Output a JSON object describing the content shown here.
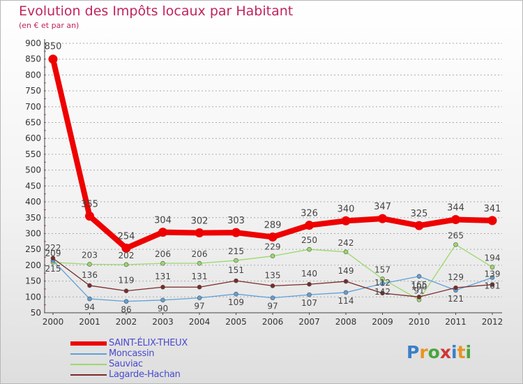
{
  "header": {
    "title": "Evolution des Impôts locaux par Habitant",
    "subtitle": "(en € et par an)"
  },
  "logo": {
    "letters": [
      "P",
      "r",
      "o",
      "x",
      "i",
      "t",
      "i"
    ]
  },
  "colors": {
    "title": "#c0245c",
    "grid": "#aaaaaa",
    "legend_text": "#4a4ad0",
    "logo": [
      "#3b7fc8",
      "#e8941f",
      "#4aa53d",
      "#d13535",
      "#3b7fc8",
      "#e8941f",
      "#4aa53d"
    ]
  },
  "chart_data": {
    "type": "line",
    "title": "Evolution des Impôts locaux par Habitant",
    "subtitle": "(en € et par an)",
    "xlabel": "",
    "ylabel": "",
    "categories": [
      "2000",
      "2001",
      "2002",
      "2003",
      "2004",
      "2005",
      "2006",
      "2007",
      "2008",
      "2009",
      "2010",
      "2011",
      "2012"
    ],
    "ylim": [
      50,
      900
    ],
    "yticks": [
      50,
      100,
      150,
      200,
      250,
      300,
      350,
      400,
      450,
      500,
      550,
      600,
      650,
      700,
      750,
      800,
      850,
      900
    ],
    "grid": "horizontal dashed",
    "legend_position": "bottom-left",
    "series": [
      {
        "name": "SAINT-ÉLIX-THEUX",
        "color": "#ee0000",
        "values": [
          850,
          355,
          254,
          304,
          302,
          303,
          289,
          326,
          340,
          347,
          325,
          344,
          341
        ],
        "labels": [
          "850",
          "355",
          "254",
          "304",
          "302",
          "303",
          "289",
          "326",
          "340",
          "347",
          "325",
          "344",
          "341"
        ]
      },
      {
        "name": "Moncassin",
        "color": "#5fa0d8",
        "values": [
          215,
          94,
          86,
          90,
          97,
          109,
          97,
          107,
          114,
          142,
          165,
          121,
          161
        ],
        "labels": [
          "215",
          "94",
          "86",
          "90",
          "97",
          "109",
          "97",
          "107",
          "114",
          "142",
          "165",
          "121",
          "161"
        ]
      },
      {
        "name": "Sauviac",
        "color": "#9ad96a",
        "values": [
          209,
          203,
          202,
          206,
          206,
          215,
          229,
          250,
          242,
          157,
          91,
          265,
          194
        ],
        "labels": [
          "209",
          "203",
          "202",
          "206",
          "206",
          "215",
          "229",
          "250",
          "242",
          "157",
          "91",
          "265",
          "194"
        ]
      },
      {
        "name": "Lagarde-Hachan",
        "color": "#7a2a2a",
        "values": [
          222,
          136,
          119,
          131,
          131,
          151,
          135,
          140,
          149,
          112,
          100,
          129,
          139
        ],
        "labels": [
          "222",
          "136",
          "119",
          "131",
          "131",
          "151",
          "135",
          "140",
          "149",
          "112",
          "100",
          "129",
          "139"
        ]
      }
    ]
  }
}
